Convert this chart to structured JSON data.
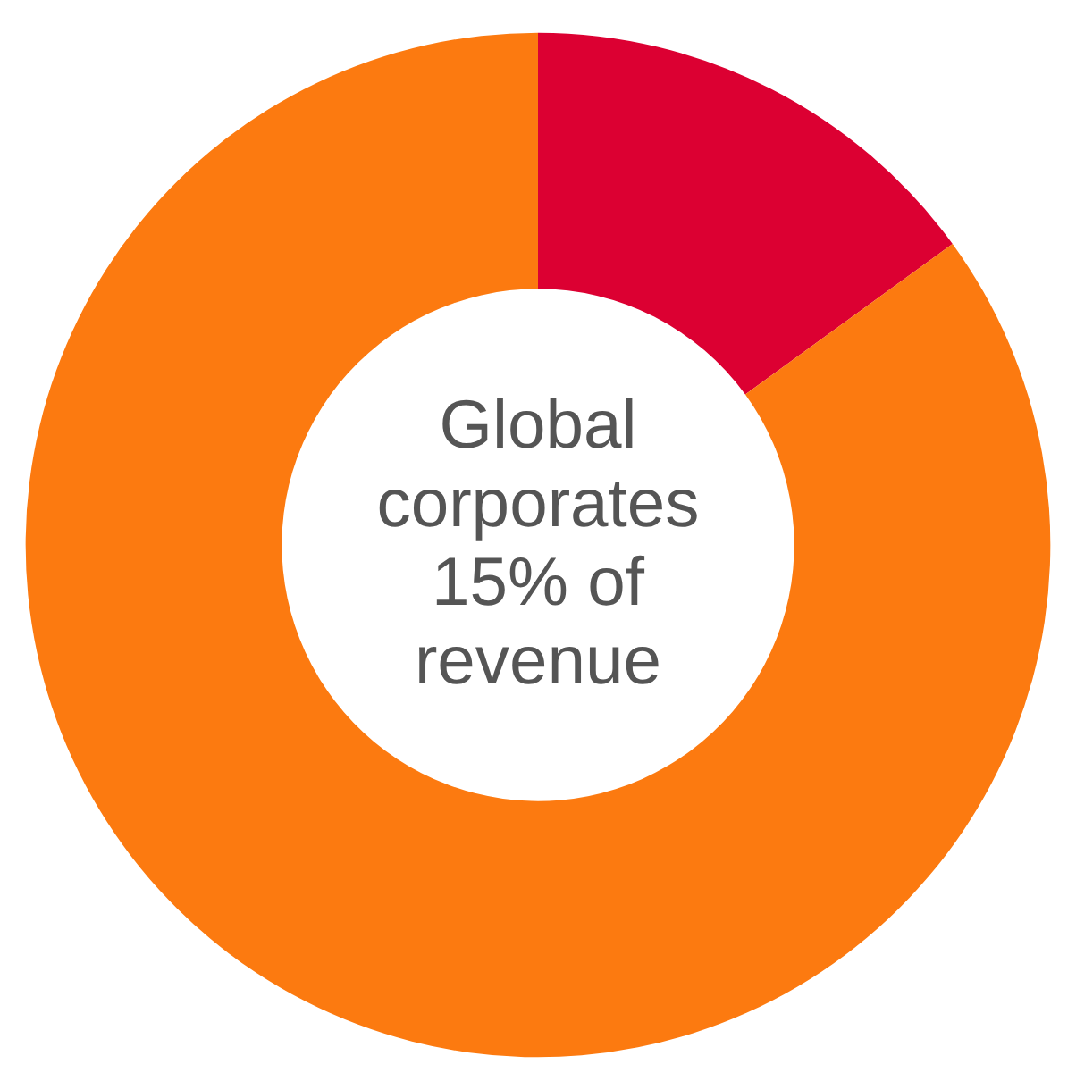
{
  "chart_data": {
    "type": "donut",
    "categories": [
      null,
      null
    ],
    "values": [
      15,
      85
    ],
    "colors": [
      "#dc0032",
      "#fc7a10"
    ],
    "annotations": [
      "Global\ncorporates\n15% of\nrevenue"
    ]
  }
}
